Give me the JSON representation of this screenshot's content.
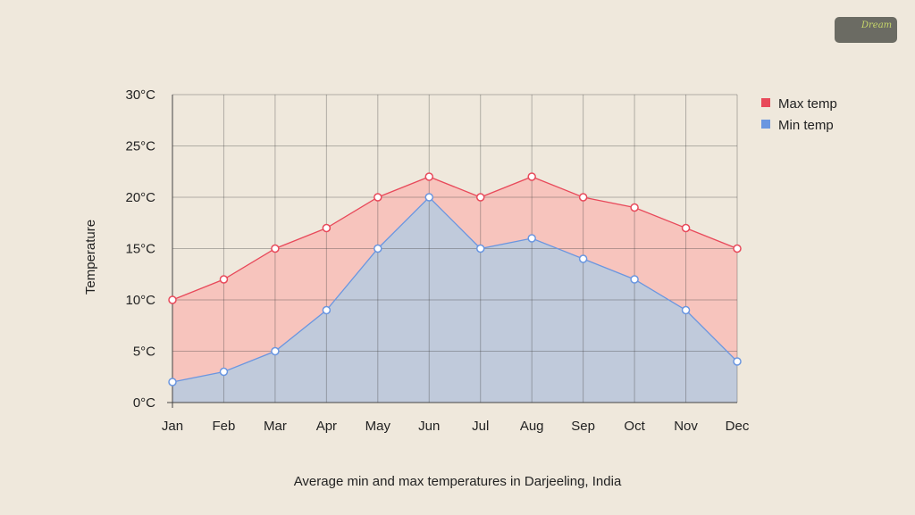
{
  "logo": {
    "text": "Dream and Travel"
  },
  "chart_data": {
    "type": "area",
    "title": "Average min and max temperatures in Darjeeling, India",
    "xlabel": "",
    "ylabel": "Temperature",
    "categories": [
      "Jan",
      "Feb",
      "Mar",
      "Apr",
      "May",
      "Jun",
      "Jul",
      "Aug",
      "Sep",
      "Oct",
      "Nov",
      "Dec"
    ],
    "ylim": [
      0,
      30
    ],
    "yticks": [
      "0°C",
      "5°C",
      "10°C",
      "15°C",
      "20°C",
      "25°C",
      "30°C"
    ],
    "grid": true,
    "legend": "top-right",
    "series": [
      {
        "name": "Max temp",
        "color": "#e8495a",
        "fill": "#f7c4bd",
        "values": [
          10,
          12,
          15,
          17,
          20,
          22,
          20,
          22,
          20,
          19,
          17,
          15
        ]
      },
      {
        "name": "Min temp",
        "color": "#6a96e0",
        "fill": "#c0cadb",
        "values": [
          2,
          3,
          5,
          9,
          15,
          20,
          15,
          16,
          14,
          12,
          9,
          4
        ]
      }
    ]
  }
}
